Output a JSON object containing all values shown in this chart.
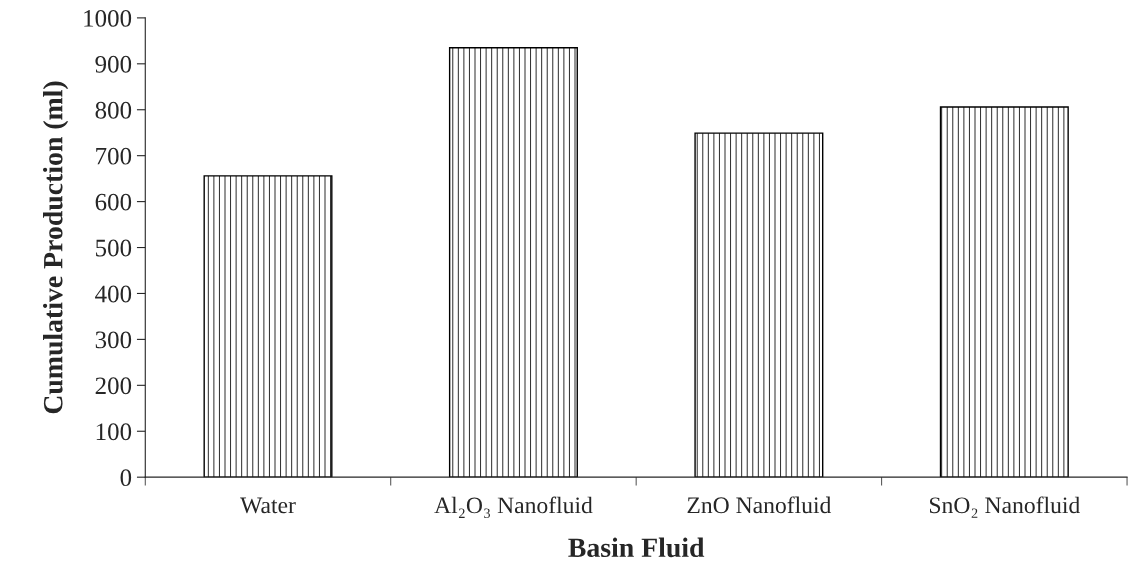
{
  "chart_data": {
    "type": "bar",
    "xlabel": "Basin Fluid",
    "ylabel": "Cumulative Production (ml)",
    "categories": [
      "Water",
      "Al₂O₃ Nanofluid",
      "ZnO Nanofluid",
      "SnO₂ Nanofluid"
    ],
    "values": [
      656,
      935,
      749,
      806
    ],
    "color": "#000000",
    "ylim": [
      0,
      1000
    ],
    "yticks": [
      0,
      100,
      200,
      300,
      400,
      500,
      600,
      700,
      800,
      900,
      1000
    ],
    "grid": false,
    "legend": false
  }
}
